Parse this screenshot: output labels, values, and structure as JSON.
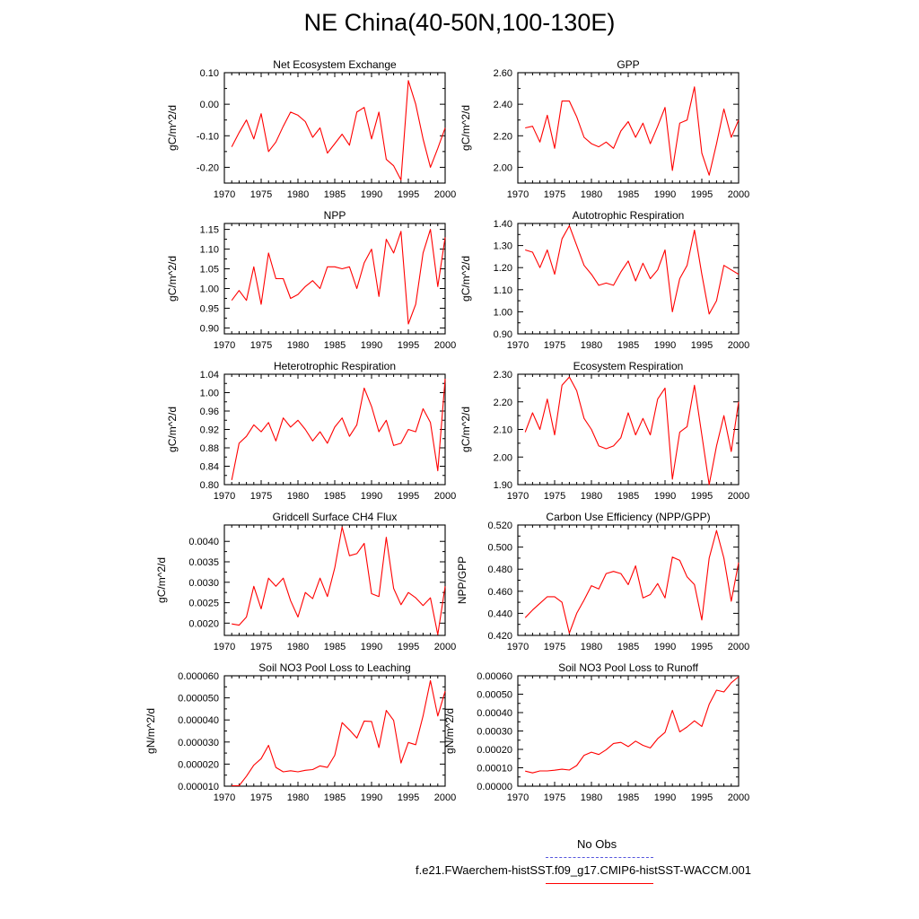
{
  "figure": {
    "title": "NE China(40-50N,100-130E)",
    "legend": [
      {
        "label": "No Obs",
        "color": "#5555dd",
        "style": "dashed"
      },
      {
        "label": "f.e21.FWaerchem-histSST.f09_g17.CMIP6-histSST-WACCM.001",
        "color": "#ff0000",
        "style": "solid"
      }
    ]
  },
  "chart_data": [
    {
      "type": "line",
      "title": "Net Ecosystem Exchange",
      "ylabel": "gC/m^2/d",
      "xlabel": "",
      "xlim": [
        1970,
        2000
      ],
      "ylim": [
        -0.25,
        0.1
      ],
      "xticks": [
        "1970",
        "1975",
        "1980",
        "1985",
        "1990",
        "1995",
        "2000"
      ],
      "yticks": [
        "0.10",
        "0.00",
        "-0.10",
        "-0.20"
      ],
      "ytick_values": [
        0.1,
        0.0,
        -0.1,
        -0.2
      ],
      "series": [
        {
          "color": "#ff0000",
          "x": [
            1971,
            1972,
            1973,
            1974,
            1975,
            1976,
            1977,
            1978,
            1979,
            1980,
            1981,
            1982,
            1983,
            1984,
            1985,
            1986,
            1987,
            1988,
            1989,
            1990,
            1991,
            1992,
            1993,
            1994,
            1995,
            1996,
            1997,
            1998,
            1999,
            2000
          ],
          "y": [
            -0.135,
            -0.09,
            -0.05,
            -0.11,
            -0.03,
            -0.15,
            -0.12,
            -0.07,
            -0.025,
            -0.035,
            -0.055,
            -0.105,
            -0.075,
            -0.155,
            -0.125,
            -0.095,
            -0.13,
            -0.025,
            -0.01,
            -0.11,
            -0.025,
            -0.175,
            -0.195,
            -0.24,
            0.075,
            0.0,
            -0.11,
            -0.2,
            -0.14,
            -0.075
          ]
        }
      ]
    },
    {
      "type": "line",
      "title": "GPP",
      "ylabel": "gC/m^2/d",
      "xlabel": "",
      "xlim": [
        1970,
        2000
      ],
      "ylim": [
        1.9,
        2.6
      ],
      "xticks": [
        "1970",
        "1975",
        "1980",
        "1985",
        "1990",
        "1995",
        "2000"
      ],
      "yticks": [
        "2.60",
        "2.40",
        "2.20",
        "2.00"
      ],
      "ytick_values": [
        2.6,
        2.4,
        2.2,
        2.0
      ],
      "series": [
        {
          "color": "#ff0000",
          "x": [
            1971,
            1972,
            1973,
            1974,
            1975,
            1976,
            1977,
            1978,
            1979,
            1980,
            1981,
            1982,
            1983,
            1984,
            1985,
            1986,
            1987,
            1988,
            1989,
            1990,
            1991,
            1992,
            1993,
            1994,
            1995,
            1996,
            1997,
            1998,
            1999,
            2000
          ],
          "y": [
            2.25,
            2.26,
            2.16,
            2.33,
            2.12,
            2.42,
            2.42,
            2.32,
            2.19,
            2.15,
            2.13,
            2.16,
            2.12,
            2.23,
            2.29,
            2.19,
            2.28,
            2.15,
            2.26,
            2.38,
            1.98,
            2.28,
            2.3,
            2.51,
            2.09,
            1.95,
            2.15,
            2.37,
            2.19,
            2.3
          ]
        }
      ]
    },
    {
      "type": "line",
      "title": "NPP",
      "ylabel": "gC/m^2/d",
      "xlabel": "",
      "xlim": [
        1970,
        2000
      ],
      "ylim": [
        0.885,
        1.165
      ],
      "xticks": [
        "1970",
        "1975",
        "1980",
        "1985",
        "1990",
        "1995",
        "2000"
      ],
      "yticks": [
        "1.15",
        "1.10",
        "1.05",
        "1.00",
        "0.95",
        "0.90"
      ],
      "ytick_values": [
        1.15,
        1.1,
        1.05,
        1.0,
        0.95,
        0.9
      ],
      "series": [
        {
          "color": "#ff0000",
          "x": [
            1971,
            1972,
            1973,
            1974,
            1975,
            1976,
            1977,
            1978,
            1979,
            1980,
            1981,
            1982,
            1983,
            1984,
            1985,
            1986,
            1987,
            1988,
            1989,
            1990,
            1991,
            1992,
            1993,
            1994,
            1995,
            1996,
            1997,
            1998,
            1999,
            2000
          ],
          "y": [
            0.97,
            0.995,
            0.97,
            1.055,
            0.96,
            1.09,
            1.025,
            1.025,
            0.975,
            0.985,
            1.005,
            1.02,
            1.0,
            1.055,
            1.055,
            1.05,
            1.055,
            1.0,
            1.065,
            1.1,
            0.98,
            1.125,
            1.09,
            1.145,
            0.91,
            0.96,
            1.09,
            1.15,
            1.005,
            1.13
          ]
        }
      ]
    },
    {
      "type": "line",
      "title": "Autotrophic Respiration",
      "ylabel": "gC/m^2/d",
      "xlabel": "",
      "xlim": [
        1970,
        2000
      ],
      "ylim": [
        0.9,
        1.4
      ],
      "xticks": [
        "1970",
        "1975",
        "1980",
        "1985",
        "1990",
        "1995",
        "2000"
      ],
      "yticks": [
        "1.40",
        "1.30",
        "1.20",
        "1.10",
        "1.00",
        "0.90"
      ],
      "ytick_values": [
        1.4,
        1.3,
        1.2,
        1.1,
        1.0,
        0.9
      ],
      "series": [
        {
          "color": "#ff0000",
          "x": [
            1971,
            1972,
            1973,
            1974,
            1975,
            1976,
            1977,
            1978,
            1979,
            1980,
            1981,
            1982,
            1983,
            1984,
            1985,
            1986,
            1987,
            1988,
            1989,
            1990,
            1991,
            1992,
            1993,
            1994,
            1995,
            1996,
            1997,
            1998,
            1999,
            2000
          ],
          "y": [
            1.28,
            1.27,
            1.2,
            1.28,
            1.17,
            1.33,
            1.39,
            1.3,
            1.21,
            1.17,
            1.12,
            1.13,
            1.12,
            1.18,
            1.23,
            1.14,
            1.22,
            1.15,
            1.19,
            1.28,
            1.0,
            1.15,
            1.21,
            1.37,
            1.17,
            0.99,
            1.05,
            1.21,
            1.19,
            1.17
          ]
        }
      ]
    },
    {
      "type": "line",
      "title": "Heterotrophic Respiration",
      "ylabel": "gC/m^2/d",
      "xlabel": "",
      "xlim": [
        1970,
        2000
      ],
      "ylim": [
        0.8,
        1.04
      ],
      "xticks": [
        "1970",
        "1975",
        "1980",
        "1985",
        "1990",
        "1995",
        "2000"
      ],
      "yticks": [
        "1.04",
        "1.00",
        "0.96",
        "0.92",
        "0.88",
        "0.84",
        "0.80"
      ],
      "ytick_values": [
        1.04,
        1.0,
        0.96,
        0.92,
        0.88,
        0.84,
        0.8
      ],
      "series": [
        {
          "color": "#ff0000",
          "x": [
            1971,
            1972,
            1973,
            1974,
            1975,
            1976,
            1977,
            1978,
            1979,
            1980,
            1981,
            1982,
            1983,
            1984,
            1985,
            1986,
            1987,
            1988,
            1989,
            1990,
            1991,
            1992,
            1993,
            1994,
            1995,
            1996,
            1997,
            1998,
            1999,
            2000
          ],
          "y": [
            0.81,
            0.89,
            0.905,
            0.93,
            0.915,
            0.935,
            0.895,
            0.945,
            0.925,
            0.94,
            0.92,
            0.895,
            0.915,
            0.89,
            0.925,
            0.945,
            0.905,
            0.93,
            1.01,
            0.97,
            0.915,
            0.94,
            0.885,
            0.89,
            0.92,
            0.915,
            0.965,
            0.935,
            0.83,
            1.03
          ]
        }
      ]
    },
    {
      "type": "line",
      "title": "Ecosystem Respiration",
      "ylabel": "gC/m^2/d",
      "xlabel": "",
      "xlim": [
        1970,
        2000
      ],
      "ylim": [
        1.9,
        2.3
      ],
      "xticks": [
        "1970",
        "1975",
        "1980",
        "1985",
        "1990",
        "1995",
        "2000"
      ],
      "yticks": [
        "2.30",
        "2.20",
        "2.10",
        "2.00",
        "1.90"
      ],
      "ytick_values": [
        2.3,
        2.2,
        2.1,
        2.0,
        1.9
      ],
      "series": [
        {
          "color": "#ff0000",
          "x": [
            1971,
            1972,
            1973,
            1974,
            1975,
            1976,
            1977,
            1978,
            1979,
            1980,
            1981,
            1982,
            1983,
            1984,
            1985,
            1986,
            1987,
            1988,
            1989,
            1990,
            1991,
            1992,
            1993,
            1994,
            1995,
            1996,
            1997,
            1998,
            1999,
            2000
          ],
          "y": [
            2.09,
            2.16,
            2.1,
            2.21,
            2.08,
            2.26,
            2.29,
            2.24,
            2.14,
            2.1,
            2.04,
            2.03,
            2.04,
            2.07,
            2.16,
            2.08,
            2.14,
            2.08,
            2.21,
            2.25,
            1.92,
            2.09,
            2.11,
            2.26,
            2.08,
            1.9,
            2.04,
            2.15,
            2.02,
            2.2
          ]
        }
      ]
    },
    {
      "type": "line",
      "title": "Gridcell Surface CH4 Flux",
      "ylabel": "gC/m^2/d",
      "xlabel": "",
      "xlim": [
        1970,
        2000
      ],
      "ylim": [
        0.0017,
        0.0044
      ],
      "xticks": [
        "1970",
        "1975",
        "1980",
        "1985",
        "1990",
        "1995",
        "2000"
      ],
      "yticks": [
        "0.0040",
        "0.0035",
        "0.0030",
        "0.0025",
        "0.0020"
      ],
      "ytick_values": [
        0.004,
        0.0035,
        0.003,
        0.0025,
        0.002
      ],
      "series": [
        {
          "color": "#ff0000",
          "x": [
            1971,
            1972,
            1973,
            1974,
            1975,
            1976,
            1977,
            1978,
            1979,
            1980,
            1981,
            1982,
            1983,
            1984,
            1985,
            1986,
            1987,
            1988,
            1989,
            1990,
            1991,
            1992,
            1993,
            1994,
            1995,
            1996,
            1997,
            1998,
            1999,
            2000
          ],
          "y": [
            0.00198,
            0.00195,
            0.00215,
            0.0029,
            0.00235,
            0.0031,
            0.0029,
            0.0031,
            0.00255,
            0.00215,
            0.00275,
            0.0026,
            0.0031,
            0.00265,
            0.00335,
            0.00435,
            0.00365,
            0.0037,
            0.00395,
            0.00272,
            0.00265,
            0.0041,
            0.00285,
            0.00245,
            0.00275,
            0.00262,
            0.00243,
            0.00262,
            0.00172,
            0.0029
          ]
        }
      ]
    },
    {
      "type": "line",
      "title": "Carbon Use Efficiency (NPP/GPP)",
      "ylabel": "NPP/GPP",
      "xlabel": "",
      "xlim": [
        1970,
        2000
      ],
      "ylim": [
        0.42,
        0.52
      ],
      "xticks": [
        "1970",
        "1975",
        "1980",
        "1985",
        "1990",
        "1995",
        "2000"
      ],
      "yticks": [
        "0.520",
        "0.500",
        "0.480",
        "0.460",
        "0.440",
        "0.420"
      ],
      "ytick_values": [
        0.52,
        0.5,
        0.48,
        0.46,
        0.44,
        0.42
      ],
      "series": [
        {
          "color": "#ff0000",
          "x": [
            1971,
            1972,
            1973,
            1974,
            1975,
            1976,
            1977,
            1978,
            1979,
            1980,
            1981,
            1982,
            1983,
            1984,
            1985,
            1986,
            1987,
            1988,
            1989,
            1990,
            1991,
            1992,
            1993,
            1994,
            1995,
            1996,
            1997,
            1998,
            1999,
            2000
          ],
          "y": [
            0.436,
            0.443,
            0.449,
            0.455,
            0.455,
            0.45,
            0.422,
            0.44,
            0.452,
            0.465,
            0.462,
            0.476,
            0.478,
            0.476,
            0.466,
            0.483,
            0.454,
            0.457,
            0.467,
            0.454,
            0.491,
            0.488,
            0.473,
            0.466,
            0.434,
            0.49,
            0.515,
            0.49,
            0.451,
            0.486
          ]
        }
      ]
    },
    {
      "type": "line",
      "title": "Soil NO3 Pool Loss to Leaching",
      "ylabel": "gN/m^2/d",
      "xlabel": "",
      "xlim": [
        1970,
        2000
      ],
      "ylim": [
        1e-05,
        6e-05
      ],
      "xticks": [
        "1970",
        "1975",
        "1980",
        "1985",
        "1990",
        "1995",
        "2000"
      ],
      "yticks": [
        "0.000060",
        "0.000050",
        "0.000040",
        "0.000030",
        "0.000020",
        "0.000010"
      ],
      "ytick_values": [
        6e-05,
        5e-05,
        4e-05,
        3e-05,
        2e-05,
        1e-05
      ],
      "series": [
        {
          "color": "#ff0000",
          "x": [
            1971,
            1972,
            1973,
            1974,
            1975,
            1976,
            1977,
            1978,
            1979,
            1980,
            1981,
            1982,
            1983,
            1984,
            1985,
            1986,
            1987,
            1988,
            1989,
            1990,
            1991,
            1992,
            1993,
            1994,
            1995,
            1996,
            1997,
            1998,
            1999,
            2000
          ],
          "y": [
            1.02e-05,
            1.02e-05,
            1.45e-05,
            1.95e-05,
            2.25e-05,
            2.85e-05,
            1.85e-05,
            1.65e-05,
            1.7e-05,
            1.65e-05,
            1.72e-05,
            1.75e-05,
            1.92e-05,
            1.85e-05,
            2.4e-05,
            3.88e-05,
            3.55e-05,
            3.18e-05,
            3.95e-05,
            3.93e-05,
            2.75e-05,
            4.43e-05,
            3.98e-05,
            2.05e-05,
            2.98e-05,
            2.88e-05,
            4.18e-05,
            5.78e-05,
            4.18e-05,
            5.3e-05
          ]
        }
      ]
    },
    {
      "type": "line",
      "title": "Soil NO3 Pool Loss to Runoff",
      "ylabel": "gN/m^2/d",
      "xlabel": "",
      "xlim": [
        1970,
        2000
      ],
      "ylim": [
        0.0,
        0.0006
      ],
      "xticks": [
        "1970",
        "1975",
        "1980",
        "1985",
        "1990",
        "1995",
        "2000"
      ],
      "yticks": [
        "0.00060",
        "0.00050",
        "0.00040",
        "0.00030",
        "0.00020",
        "0.00010",
        "0.00000"
      ],
      "ytick_values": [
        0.0006,
        0.0005,
        0.0004,
        0.0003,
        0.0002,
        0.0001,
        0.0
      ],
      "series": [
        {
          "color": "#ff0000",
          "x": [
            1971,
            1972,
            1973,
            1974,
            1975,
            1976,
            1977,
            1978,
            1979,
            1980,
            1981,
            1982,
            1983,
            1984,
            1985,
            1986,
            1987,
            1988,
            1989,
            1990,
            1991,
            1992,
            1993,
            1994,
            1995,
            1996,
            1997,
            1998,
            1999,
            2000
          ],
          "y": [
            8.2e-05,
            7.2e-05,
            8.3e-05,
            8.3e-05,
            8.7e-05,
            9.2e-05,
            8.8e-05,
            0.000112,
            0.000168,
            0.000185,
            0.000172,
            0.000198,
            0.000232,
            0.000238,
            0.000215,
            0.000245,
            0.000222,
            0.000208,
            0.000258,
            0.000292,
            0.000412,
            0.000295,
            0.000322,
            0.000355,
            0.000325,
            0.000445,
            0.000522,
            0.000512,
            0.000562,
            0.000595
          ]
        }
      ]
    }
  ]
}
